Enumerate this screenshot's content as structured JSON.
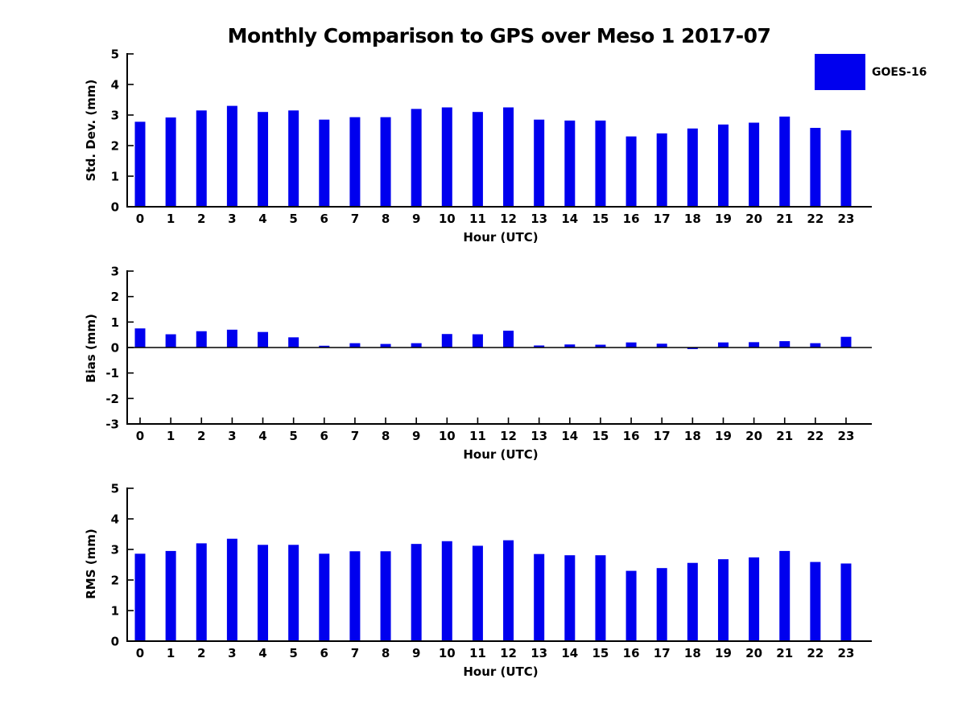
{
  "title": "Monthly Comparison to GPS over Meso 1 2017-07",
  "legend": {
    "label": "GOES-16",
    "swatch_color": "#0000ee"
  },
  "colors": {
    "bar": "#0000ee",
    "axis": "#000000",
    "text": "#000000",
    "background": "#ffffff"
  },
  "chart_data": [
    {
      "type": "bar",
      "name": "std-dev",
      "series_name": "GOES-16",
      "ylabel": "Std. Dev. (mm)",
      "xlabel": "Hour (UTC)",
      "categories": [
        0,
        1,
        2,
        3,
        4,
        5,
        6,
        7,
        8,
        9,
        10,
        11,
        12,
        13,
        14,
        15,
        16,
        17,
        18,
        19,
        20,
        21,
        22,
        23
      ],
      "values": [
        2.78,
        2.92,
        3.15,
        3.3,
        3.1,
        3.15,
        2.85,
        2.93,
        2.93,
        3.2,
        3.25,
        3.1,
        3.25,
        2.85,
        2.82,
        2.82,
        2.3,
        2.4,
        2.56,
        2.69,
        2.75,
        2.95,
        2.58,
        2.5
      ],
      "ylim": [
        0,
        5
      ],
      "yticks": [
        0,
        1,
        2,
        3,
        4,
        5
      ],
      "grid": false,
      "legend_position": "upper-right-outside",
      "bar_color": "#0000ee"
    },
    {
      "type": "bar",
      "name": "bias",
      "series_name": "GOES-16",
      "ylabel": "Bias (mm)",
      "xlabel": "Hour (UTC)",
      "categories": [
        0,
        1,
        2,
        3,
        4,
        5,
        6,
        7,
        8,
        9,
        10,
        11,
        12,
        13,
        14,
        15,
        16,
        17,
        18,
        19,
        20,
        21,
        22,
        23
      ],
      "values": [
        0.75,
        0.52,
        0.64,
        0.7,
        0.61,
        0.4,
        0.07,
        0.17,
        0.14,
        0.17,
        0.53,
        0.52,
        0.66,
        0.08,
        0.12,
        0.11,
        0.2,
        0.15,
        -0.06,
        0.2,
        0.21,
        0.25,
        0.17,
        0.42
      ],
      "ylim": [
        -3,
        3
      ],
      "yticks": [
        -3,
        -2,
        -1,
        0,
        1,
        2,
        3
      ],
      "grid": false,
      "bar_color": "#0000ee"
    },
    {
      "type": "bar",
      "name": "rms",
      "series_name": "GOES-16",
      "ylabel": "RMS (mm)",
      "xlabel": "Hour (UTC)",
      "categories": [
        0,
        1,
        2,
        3,
        4,
        5,
        6,
        7,
        8,
        9,
        10,
        11,
        12,
        13,
        14,
        15,
        16,
        17,
        18,
        19,
        20,
        21,
        22,
        23
      ],
      "values": [
        2.86,
        2.95,
        3.2,
        3.35,
        3.15,
        3.15,
        2.86,
        2.94,
        2.94,
        3.18,
        3.27,
        3.12,
        3.3,
        2.85,
        2.81,
        2.81,
        2.3,
        2.39,
        2.56,
        2.68,
        2.74,
        2.95,
        2.59,
        2.54
      ],
      "ylim": [
        0,
        5
      ],
      "yticks": [
        0,
        1,
        2,
        3,
        4,
        5
      ],
      "grid": false,
      "bar_color": "#0000ee"
    }
  ]
}
